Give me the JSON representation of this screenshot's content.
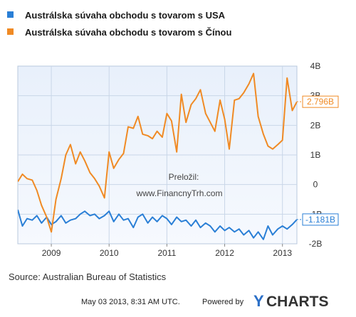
{
  "chart_data": {
    "type": "line",
    "title": "",
    "xlabel": "",
    "ylabel": "",
    "x_ticks": [
      "2009",
      "2010",
      "2011",
      "2012",
      "2013"
    ],
    "y_ticks": [
      "4B",
      "3B",
      "2B",
      "1B",
      "0",
      "-1B",
      "-2B"
    ],
    "ylim": [
      -2,
      4
    ],
    "xlim": [
      2008.42,
      2013.25
    ],
    "grid": true,
    "legend_position": "top-left",
    "series": [
      {
        "name": "Austrálska súvaha obchodu s tovarom s USA",
        "color": "#2a7fd6",
        "end_label": "-1.181B",
        "points": [
          [
            2008.42,
            -0.85
          ],
          [
            2008.5,
            -1.4
          ],
          [
            2008.58,
            -1.15
          ],
          [
            2008.67,
            -1.2
          ],
          [
            2008.75,
            -1.05
          ],
          [
            2008.83,
            -1.3
          ],
          [
            2008.92,
            -1.1
          ],
          [
            2009.0,
            -1.35
          ],
          [
            2009.08,
            -1.25
          ],
          [
            2009.17,
            -1.05
          ],
          [
            2009.25,
            -1.3
          ],
          [
            2009.33,
            -1.2
          ],
          [
            2009.42,
            -1.15
          ],
          [
            2009.5,
            -1.0
          ],
          [
            2009.58,
            -0.9
          ],
          [
            2009.67,
            -1.05
          ],
          [
            2009.75,
            -1.0
          ],
          [
            2009.83,
            -1.15
          ],
          [
            2009.92,
            -1.05
          ],
          [
            2010.0,
            -0.9
          ],
          [
            2010.08,
            -1.25
          ],
          [
            2010.17,
            -1.0
          ],
          [
            2010.25,
            -1.2
          ],
          [
            2010.33,
            -1.15
          ],
          [
            2010.42,
            -1.45
          ],
          [
            2010.5,
            -1.1
          ],
          [
            2010.58,
            -1.0
          ],
          [
            2010.67,
            -1.3
          ],
          [
            2010.75,
            -1.1
          ],
          [
            2010.83,
            -1.25
          ],
          [
            2010.92,
            -1.05
          ],
          [
            2011.0,
            -1.15
          ],
          [
            2011.08,
            -1.35
          ],
          [
            2011.17,
            -1.1
          ],
          [
            2011.25,
            -1.25
          ],
          [
            2011.33,
            -1.2
          ],
          [
            2011.42,
            -1.4
          ],
          [
            2011.5,
            -1.2
          ],
          [
            2011.58,
            -1.45
          ],
          [
            2011.67,
            -1.3
          ],
          [
            2011.75,
            -1.4
          ],
          [
            2011.83,
            -1.6
          ],
          [
            2011.92,
            -1.4
          ],
          [
            2012.0,
            -1.55
          ],
          [
            2012.08,
            -1.45
          ],
          [
            2012.17,
            -1.6
          ],
          [
            2012.25,
            -1.5
          ],
          [
            2012.33,
            -1.7
          ],
          [
            2012.42,
            -1.55
          ],
          [
            2012.5,
            -1.8
          ],
          [
            2012.58,
            -1.6
          ],
          [
            2012.67,
            -1.85
          ],
          [
            2012.75,
            -1.4
          ],
          [
            2012.83,
            -1.7
          ],
          [
            2012.92,
            -1.5
          ],
          [
            2013.0,
            -1.4
          ],
          [
            2013.08,
            -1.5
          ],
          [
            2013.17,
            -1.35
          ],
          [
            2013.25,
            -1.181
          ]
        ]
      },
      {
        "name": "Austrálska súvaha obchodu s tovarom s Čínou",
        "color": "#f08a24",
        "end_label": "2.796B",
        "points": [
          [
            2008.42,
            0.1
          ],
          [
            2008.5,
            0.35
          ],
          [
            2008.58,
            0.2
          ],
          [
            2008.67,
            0.15
          ],
          [
            2008.75,
            -0.2
          ],
          [
            2008.83,
            -0.7
          ],
          [
            2008.92,
            -1.1
          ],
          [
            2009.0,
            -1.6
          ],
          [
            2009.08,
            -0.5
          ],
          [
            2009.17,
            0.2
          ],
          [
            2009.25,
            1.0
          ],
          [
            2009.33,
            1.35
          ],
          [
            2009.42,
            0.7
          ],
          [
            2009.5,
            1.1
          ],
          [
            2009.58,
            0.8
          ],
          [
            2009.67,
            0.4
          ],
          [
            2009.75,
            0.2
          ],
          [
            2009.83,
            -0.05
          ],
          [
            2009.92,
            -0.45
          ],
          [
            2010.0,
            1.1
          ],
          [
            2010.08,
            0.55
          ],
          [
            2010.17,
            0.85
          ],
          [
            2010.25,
            1.05
          ],
          [
            2010.33,
            1.95
          ],
          [
            2010.42,
            1.9
          ],
          [
            2010.5,
            2.3
          ],
          [
            2010.58,
            1.7
          ],
          [
            2010.67,
            1.65
          ],
          [
            2010.75,
            1.55
          ],
          [
            2010.83,
            1.8
          ],
          [
            2010.92,
            1.6
          ],
          [
            2011.0,
            2.4
          ],
          [
            2011.08,
            2.15
          ],
          [
            2011.17,
            1.1
          ],
          [
            2011.25,
            3.05
          ],
          [
            2011.33,
            2.1
          ],
          [
            2011.42,
            2.7
          ],
          [
            2011.5,
            2.9
          ],
          [
            2011.58,
            3.2
          ],
          [
            2011.67,
            2.4
          ],
          [
            2011.75,
            2.1
          ],
          [
            2011.83,
            1.8
          ],
          [
            2011.92,
            2.85
          ],
          [
            2012.0,
            2.2
          ],
          [
            2012.08,
            1.2
          ],
          [
            2012.17,
            2.85
          ],
          [
            2012.25,
            2.9
          ],
          [
            2012.33,
            3.1
          ],
          [
            2012.42,
            3.4
          ],
          [
            2012.5,
            3.75
          ],
          [
            2012.58,
            2.3
          ],
          [
            2012.67,
            1.7
          ],
          [
            2012.75,
            1.3
          ],
          [
            2012.83,
            1.2
          ],
          [
            2012.92,
            1.35
          ],
          [
            2013.0,
            1.5
          ],
          [
            2013.08,
            3.6
          ],
          [
            2013.17,
            2.5
          ],
          [
            2013.25,
            2.796
          ]
        ]
      }
    ]
  },
  "watermark": {
    "line1": "Preložil:",
    "line2": "www.FinancnyTrh.com"
  },
  "source": "Source: Australian Bureau of Statistics",
  "footer": {
    "timestamp": "May 03 2013, 8:31 AM UTC.",
    "powered_by": "Powered by",
    "brand_y": "Y",
    "brand_rest": "CHARTS"
  }
}
